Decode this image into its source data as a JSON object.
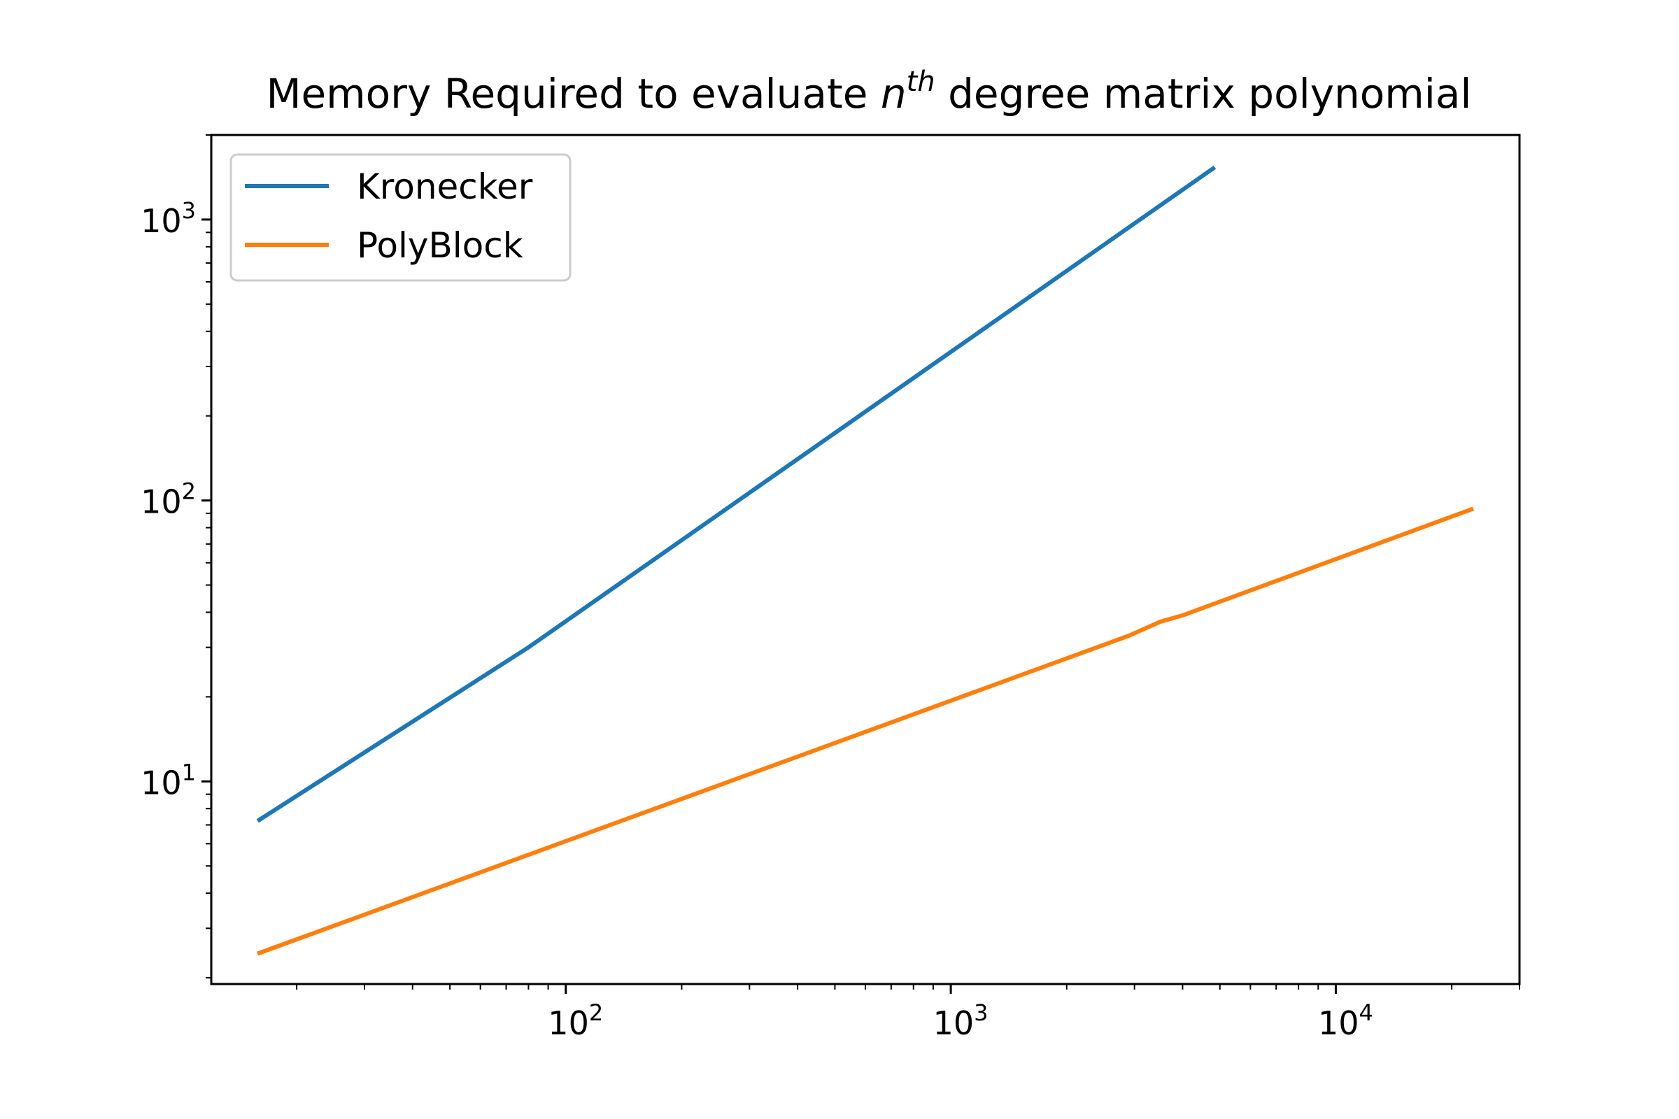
{
  "chart_data": {
    "type": "line",
    "title": {
      "prefix": "Memory Required to evaluate ",
      "var": "n",
      "sup": "th",
      "suffix": " degree matrix polynomial"
    },
    "xlabel": "",
    "ylabel": "",
    "xscale": "log",
    "yscale": "log",
    "xlim": [
      12,
      30000
    ],
    "ylim": [
      1.9,
      2000
    ],
    "x_ticks": [
      {
        "value": 100,
        "base": "10",
        "exp": "2"
      },
      {
        "value": 1000,
        "base": "10",
        "exp": "3"
      },
      {
        "value": 10000,
        "base": "10",
        "exp": "4"
      }
    ],
    "y_ticks": [
      {
        "value": 10,
        "base": "10",
        "exp": "1"
      },
      {
        "value": 100,
        "base": "10",
        "exp": "2"
      },
      {
        "value": 1000,
        "base": "10",
        "exp": "3"
      }
    ],
    "grid": false,
    "legend_position": "upper-left",
    "series": [
      {
        "name": "Kronecker",
        "color": "#1f77b4",
        "x": [
          16,
          80,
          4800
        ],
        "y": [
          7.3,
          30,
          1520
        ]
      },
      {
        "name": "PolyBlock",
        "color": "#ff7f0e",
        "x": [
          16,
          2900,
          3500,
          4000,
          22500
        ],
        "y": [
          2.45,
          33,
          37,
          39,
          93
        ]
      }
    ]
  }
}
